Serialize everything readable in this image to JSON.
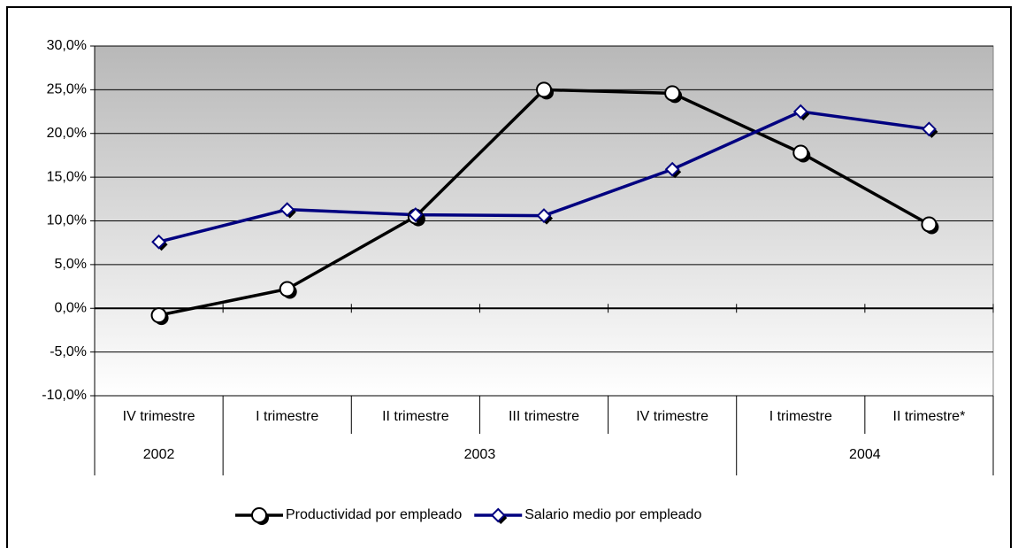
{
  "chart_data": {
    "type": "line",
    "categories": [
      "IV trimestre",
      "I trimestre",
      "II trimestre",
      "III trimestre",
      "IV trimestre",
      "I trimestre",
      "II trimestre*"
    ],
    "groups": [
      {
        "label": "2002",
        "span": 1
      },
      {
        "label": "2003",
        "span": 4
      },
      {
        "label": "2004",
        "span": 2
      }
    ],
    "series": [
      {
        "name": "Productividad por empleado",
        "color": "#000000",
        "marker": "circle",
        "values": [
          -0.8,
          2.2,
          10.5,
          25.0,
          24.6,
          17.8,
          9.6
        ]
      },
      {
        "name": "Salario medio por empleado",
        "color": "#000080",
        "marker": "diamond",
        "values": [
          7.6,
          11.3,
          10.7,
          10.6,
          15.9,
          22.5,
          20.5
        ]
      }
    ],
    "ylim": [
      -10,
      30
    ],
    "yticks": [
      {
        "value": -10,
        "label": "-10,0%"
      },
      {
        "value": -5,
        "label": "-5,0%"
      },
      {
        "value": 0,
        "label": "0,0%"
      },
      {
        "value": 5,
        "label": "5,0%"
      },
      {
        "value": 10,
        "label": "10,0%"
      },
      {
        "value": 15,
        "label": "15,0%"
      },
      {
        "value": 20,
        "label": "20,0%"
      },
      {
        "value": 25,
        "label": "25,0%"
      },
      {
        "value": 30,
        "label": "30,0%"
      }
    ],
    "grid": true,
    "legend": "bottom"
  }
}
